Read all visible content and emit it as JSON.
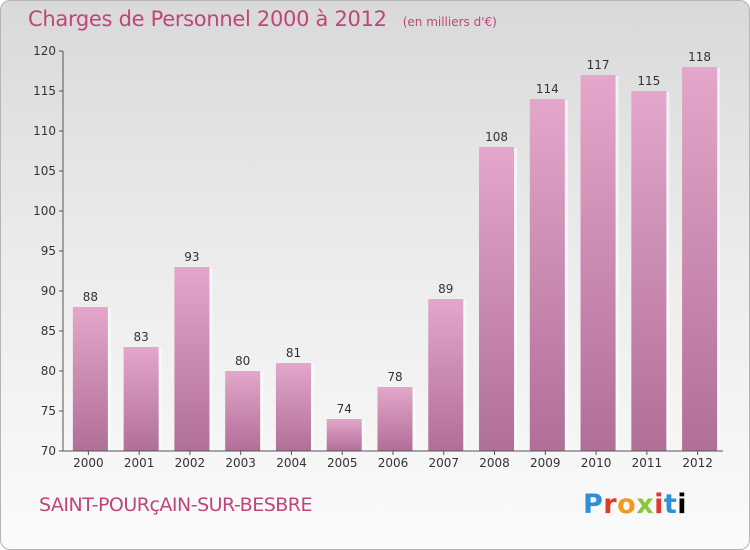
{
  "header": {
    "title": "Charges de Personnel 2000 à 2012",
    "unit": "(en milliers d'€)"
  },
  "footer": {
    "commune": "SAINT-POURçAIN-SUR-BESBRE",
    "logo_letters": [
      "P",
      "r",
      "o",
      "x",
      "i",
      "t",
      "i"
    ]
  },
  "colors": {
    "title": "#c0457a",
    "bar_top": "#e4a6cb",
    "bar_bottom": "#b06f97",
    "axis": "#555555"
  },
  "chart_data": {
    "type": "bar",
    "title": "Charges de Personnel 2000 à 2012",
    "subtitle": "(en milliers d'€)",
    "categories": [
      "2000",
      "2001",
      "2002",
      "2003",
      "2004",
      "2005",
      "2006",
      "2007",
      "2008",
      "2009",
      "2010",
      "2011",
      "2012"
    ],
    "values": [
      88,
      83,
      93,
      80,
      81,
      74,
      78,
      89,
      108,
      114,
      117,
      115,
      118
    ],
    "ylim": [
      70,
      120
    ],
    "yticks": [
      70,
      75,
      80,
      85,
      90,
      95,
      100,
      105,
      110,
      115,
      120
    ],
    "grid": false,
    "legend": "none"
  }
}
